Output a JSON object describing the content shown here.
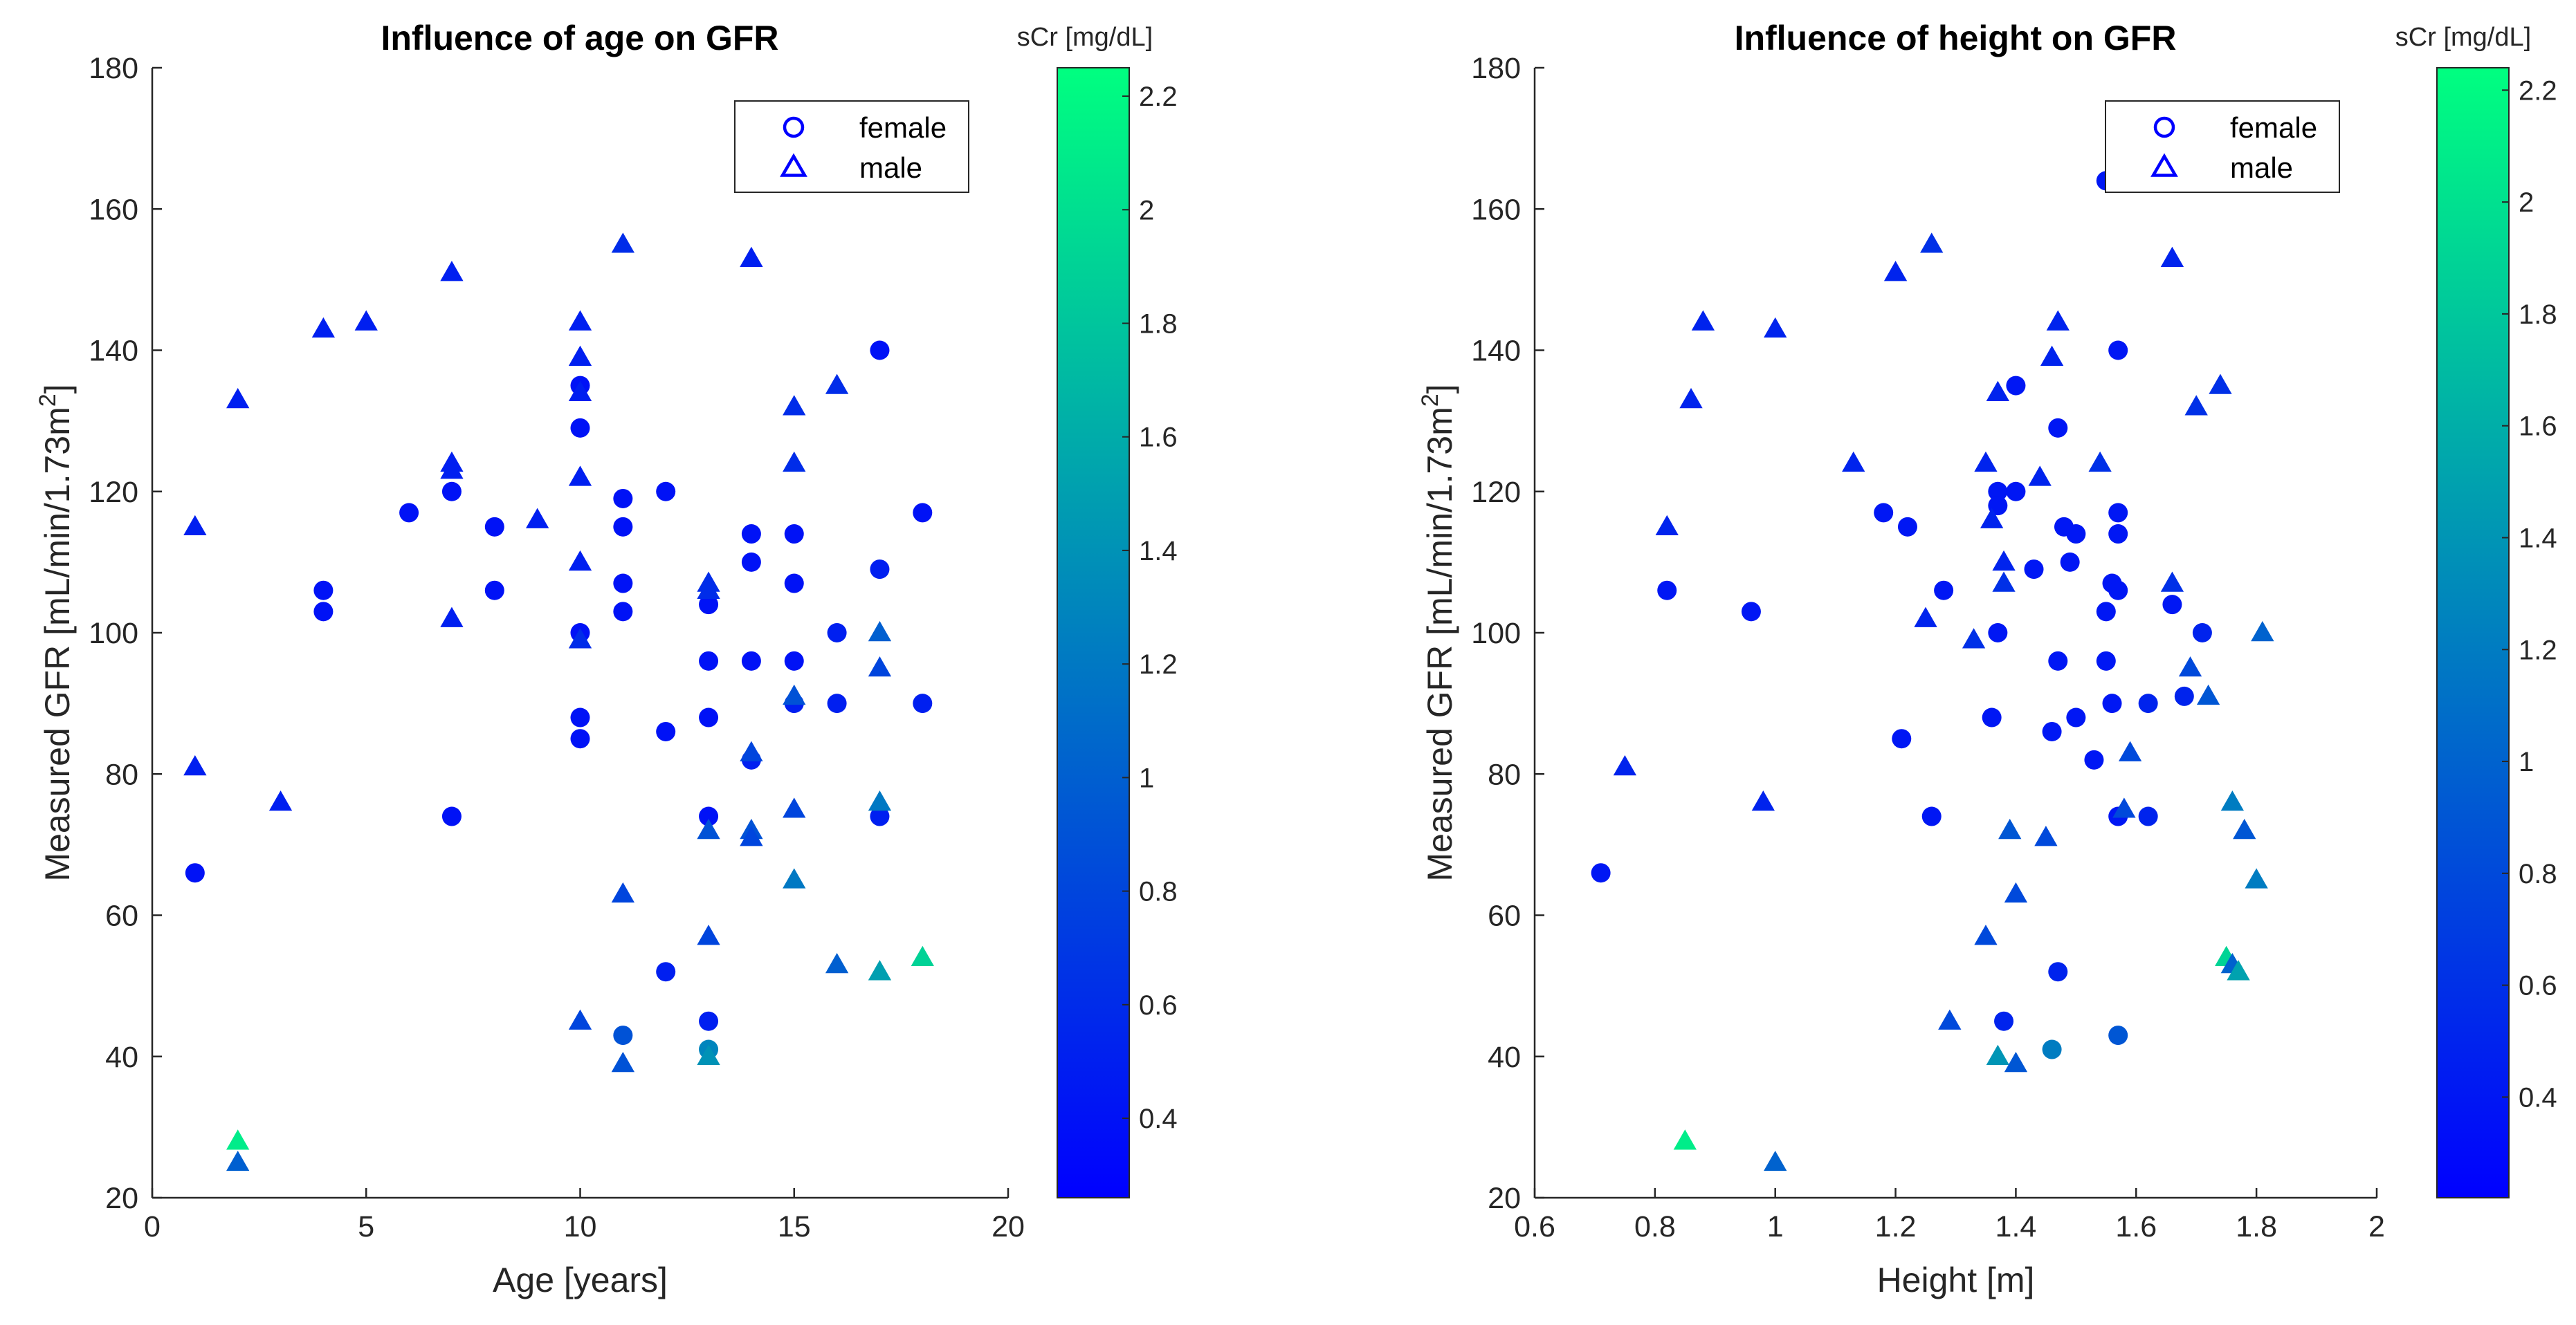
{
  "chart_data": [
    {
      "type": "scatter",
      "title": "Influence of age on GFR",
      "xlabel": "Age [years]",
      "ylabel": "Measured GFR [mL/min/1.73m",
      "ylabel_sup": "2",
      "ylabel_end": "]",
      "xlim": [
        0,
        20
      ],
      "ylim": [
        20,
        180
      ],
      "xticks": [
        0,
        5,
        10,
        15,
        20
      ],
      "yticks": [
        20,
        40,
        60,
        80,
        100,
        120,
        140,
        160,
        180
      ],
      "grid": false,
      "legend_position": "top-right",
      "colorbar": {
        "label": "sCr [mg/dL]",
        "range": [
          0.26,
          2.25
        ],
        "ticks": [
          0.4,
          0.6,
          0.8,
          1,
          1.2,
          1.4,
          1.6,
          1.8,
          2,
          2.2
        ],
        "colormap_low": "#0000ff",
        "colormap_high": "#00ff80"
      },
      "series": [
        {
          "name": "female",
          "marker": "circle",
          "points": [
            {
              "x": 1,
              "y": 66,
              "c": 0.4
            },
            {
              "x": 4,
              "y": 106,
              "c": 0.4
            },
            {
              "x": 4,
              "y": 103,
              "c": 0.4
            },
            {
              "x": 6,
              "y": 117,
              "c": 0.4
            },
            {
              "x": 7,
              "y": 120,
              "c": 0.4
            },
            {
              "x": 7,
              "y": 74,
              "c": 0.4
            },
            {
              "x": 8,
              "y": 115,
              "c": 0.4
            },
            {
              "x": 8,
              "y": 106,
              "c": 0.4
            },
            {
              "x": 10,
              "y": 135,
              "c": 0.4
            },
            {
              "x": 10,
              "y": 129,
              "c": 0.4
            },
            {
              "x": 10,
              "y": 100,
              "c": 0.4
            },
            {
              "x": 10,
              "y": 88,
              "c": 0.4
            },
            {
              "x": 10,
              "y": 85,
              "c": 0.4
            },
            {
              "x": 11,
              "y": 119,
              "c": 0.4
            },
            {
              "x": 11,
              "y": 115,
              "c": 0.4
            },
            {
              "x": 11,
              "y": 107,
              "c": 0.4
            },
            {
              "x": 11,
              "y": 103,
              "c": 0.4
            },
            {
              "x": 11,
              "y": 43,
              "c": 0.9
            },
            {
              "x": 12,
              "y": 120,
              "c": 0.4
            },
            {
              "x": 12,
              "y": 86,
              "c": 0.4
            },
            {
              "x": 12,
              "y": 52,
              "c": 0.5
            },
            {
              "x": 13,
              "y": 104,
              "c": 0.4
            },
            {
              "x": 13,
              "y": 96,
              "c": 0.4
            },
            {
              "x": 13,
              "y": 88,
              "c": 0.4
            },
            {
              "x": 13,
              "y": 74,
              "c": 0.4
            },
            {
              "x": 13,
              "y": 45,
              "c": 0.5
            },
            {
              "x": 13,
              "y": 41,
              "c": 1.3
            },
            {
              "x": 14,
              "y": 114,
              "c": 0.4
            },
            {
              "x": 14,
              "y": 110,
              "c": 0.4
            },
            {
              "x": 14,
              "y": 96,
              "c": 0.4
            },
            {
              "x": 14,
              "y": 82,
              "c": 0.5
            },
            {
              "x": 15,
              "y": 114,
              "c": 0.4
            },
            {
              "x": 15,
              "y": 107,
              "c": 0.4
            },
            {
              "x": 15,
              "y": 96,
              "c": 0.4
            },
            {
              "x": 15,
              "y": 90,
              "c": 0.5
            },
            {
              "x": 16,
              "y": 100,
              "c": 0.5
            },
            {
              "x": 16,
              "y": 90,
              "c": 0.5
            },
            {
              "x": 17,
              "y": 140,
              "c": 0.4
            },
            {
              "x": 17,
              "y": 109,
              "c": 0.5
            },
            {
              "x": 17,
              "y": 74,
              "c": 0.5
            },
            {
              "x": 18,
              "y": 117,
              "c": 0.4
            },
            {
              "x": 18,
              "y": 90,
              "c": 0.5
            }
          ]
        },
        {
          "name": "male",
          "marker": "triangle",
          "points": [
            {
              "x": 1,
              "y": 115,
              "c": 0.5
            },
            {
              "x": 1,
              "y": 81,
              "c": 0.5
            },
            {
              "x": 2,
              "y": 133,
              "c": 0.5
            },
            {
              "x": 2,
              "y": 28,
              "c": 2.1
            },
            {
              "x": 2,
              "y": 25,
              "c": 1.0
            },
            {
              "x": 3,
              "y": 76,
              "c": 0.5
            },
            {
              "x": 4,
              "y": 143,
              "c": 0.5
            },
            {
              "x": 5,
              "y": 144,
              "c": 0.5
            },
            {
              "x": 7,
              "y": 151,
              "c": 0.5
            },
            {
              "x": 7,
              "y": 124,
              "c": 0.5
            },
            {
              "x": 7,
              "y": 123,
              "c": 0.5
            },
            {
              "x": 7,
              "y": 102,
              "c": 0.5
            },
            {
              "x": 9,
              "y": 116,
              "c": 0.5
            },
            {
              "x": 10,
              "y": 144,
              "c": 0.5
            },
            {
              "x": 10,
              "y": 139,
              "c": 0.5
            },
            {
              "x": 10,
              "y": 134,
              "c": 0.5
            },
            {
              "x": 10,
              "y": 122,
              "c": 0.5
            },
            {
              "x": 10,
              "y": 110,
              "c": 0.5
            },
            {
              "x": 10,
              "y": 99,
              "c": 0.6
            },
            {
              "x": 10,
              "y": 45,
              "c": 0.8
            },
            {
              "x": 11,
              "y": 155,
              "c": 0.6
            },
            {
              "x": 11,
              "y": 63,
              "c": 0.8
            },
            {
              "x": 11,
              "y": 39,
              "c": 0.9
            },
            {
              "x": 13,
              "y": 107,
              "c": 0.6
            },
            {
              "x": 13,
              "y": 106,
              "c": 0.6
            },
            {
              "x": 13,
              "y": 72,
              "c": 0.9
            },
            {
              "x": 13,
              "y": 57,
              "c": 0.8
            },
            {
              "x": 13,
              "y": 40,
              "c": 1.4
            },
            {
              "x": 14,
              "y": 153,
              "c": 0.5
            },
            {
              "x": 14,
              "y": 83,
              "c": 0.8
            },
            {
              "x": 14,
              "y": 72,
              "c": 0.9
            },
            {
              "x": 14,
              "y": 71,
              "c": 0.8
            },
            {
              "x": 15,
              "y": 132,
              "c": 0.6
            },
            {
              "x": 15,
              "y": 124,
              "c": 0.6
            },
            {
              "x": 15,
              "y": 91,
              "c": 0.9
            },
            {
              "x": 15,
              "y": 75,
              "c": 0.8
            },
            {
              "x": 15,
              "y": 65,
              "c": 1.2
            },
            {
              "x": 16,
              "y": 135,
              "c": 0.6
            },
            {
              "x": 16,
              "y": 53,
              "c": 1.0
            },
            {
              "x": 17,
              "y": 100,
              "c": 1.0
            },
            {
              "x": 17,
              "y": 95,
              "c": 0.8
            },
            {
              "x": 17,
              "y": 76,
              "c": 1.2
            },
            {
              "x": 17,
              "y": 52,
              "c": 1.5
            },
            {
              "x": 18,
              "y": 54,
              "c": 1.9
            }
          ]
        }
      ]
    },
    {
      "type": "scatter",
      "title": "Influence of height on GFR",
      "xlabel": "Height [m]",
      "ylabel": "Measured GFR [mL/min/1.73m",
      "ylabel_sup": "2",
      "ylabel_end": "]",
      "xlim": [
        0.6,
        2
      ],
      "ylim": [
        20,
        180
      ],
      "xticks": [
        0.6,
        0.8,
        1,
        1.2,
        1.4,
        1.6,
        1.8,
        2
      ],
      "yticks": [
        20,
        40,
        60,
        80,
        100,
        120,
        140,
        160,
        180
      ],
      "grid": false,
      "legend_position": "top-right",
      "colorbar": {
        "label": "sCr [mg/dL]",
        "range": [
          0.22,
          2.24
        ],
        "ticks": [
          0.4,
          0.6,
          0.8,
          1,
          1.2,
          1.4,
          1.6,
          1.8,
          2,
          2.2
        ],
        "colormap_low": "#0000ff",
        "colormap_high": "#00ff80"
      },
      "series": [
        {
          "name": "female",
          "marker": "circle",
          "points": [
            {
              "x": 0.71,
              "y": 66,
              "c": 0.4
            },
            {
              "x": 0.82,
              "y": 106,
              "c": 0.4
            },
            {
              "x": 0.96,
              "y": 103,
              "c": 0.4
            },
            {
              "x": 1.18,
              "y": 117,
              "c": 0.4
            },
            {
              "x": 1.22,
              "y": 115,
              "c": 0.4
            },
            {
              "x": 1.21,
              "y": 85,
              "c": 0.4
            },
            {
              "x": 1.26,
              "y": 74,
              "c": 0.4
            },
            {
              "x": 1.28,
              "y": 106,
              "c": 0.4
            },
            {
              "x": 1.36,
              "y": 88,
              "c": 0.4
            },
            {
              "x": 1.37,
              "y": 120,
              "c": 0.4
            },
            {
              "x": 1.37,
              "y": 118,
              "c": 0.4
            },
            {
              "x": 1.37,
              "y": 100,
              "c": 0.4
            },
            {
              "x": 1.38,
              "y": 45,
              "c": 0.5
            },
            {
              "x": 1.4,
              "y": 135,
              "c": 0.4
            },
            {
              "x": 1.4,
              "y": 120,
              "c": 0.4
            },
            {
              "x": 1.43,
              "y": 109,
              "c": 0.4
            },
            {
              "x": 1.46,
              "y": 86,
              "c": 0.4
            },
            {
              "x": 1.46,
              "y": 41,
              "c": 1.2
            },
            {
              "x": 1.47,
              "y": 129,
              "c": 0.4
            },
            {
              "x": 1.47,
              "y": 96,
              "c": 0.4
            },
            {
              "x": 1.47,
              "y": 52,
              "c": 0.5
            },
            {
              "x": 1.48,
              "y": 115,
              "c": 0.4
            },
            {
              "x": 1.49,
              "y": 110,
              "c": 0.4
            },
            {
              "x": 1.5,
              "y": 114,
              "c": 0.4
            },
            {
              "x": 1.5,
              "y": 88,
              "c": 0.4
            },
            {
              "x": 1.53,
              "y": 82,
              "c": 0.4
            },
            {
              "x": 1.55,
              "y": 164,
              "c": 0.4
            },
            {
              "x": 1.55,
              "y": 103,
              "c": 0.4
            },
            {
              "x": 1.55,
              "y": 96,
              "c": 0.4
            },
            {
              "x": 1.56,
              "y": 107,
              "c": 0.4
            },
            {
              "x": 1.56,
              "y": 90,
              "c": 0.4
            },
            {
              "x": 1.57,
              "y": 140,
              "c": 0.4
            },
            {
              "x": 1.57,
              "y": 117,
              "c": 0.4
            },
            {
              "x": 1.57,
              "y": 114,
              "c": 0.4
            },
            {
              "x": 1.57,
              "y": 106,
              "c": 0.4
            },
            {
              "x": 1.57,
              "y": 74,
              "c": 0.4
            },
            {
              "x": 1.57,
              "y": 43,
              "c": 0.9
            },
            {
              "x": 1.62,
              "y": 90,
              "c": 0.5
            },
            {
              "x": 1.62,
              "y": 74,
              "c": 0.5
            },
            {
              "x": 1.66,
              "y": 104,
              "c": 0.4
            },
            {
              "x": 1.68,
              "y": 91,
              "c": 0.5
            },
            {
              "x": 1.71,
              "y": 100,
              "c": 0.5
            }
          ]
        },
        {
          "name": "male",
          "marker": "triangle",
          "points": [
            {
              "x": 0.75,
              "y": 81,
              "c": 0.5
            },
            {
              "x": 0.82,
              "y": 115,
              "c": 0.5
            },
            {
              "x": 0.85,
              "y": 28,
              "c": 2.1
            },
            {
              "x": 0.86,
              "y": 133,
              "c": 0.5
            },
            {
              "x": 0.88,
              "y": 144,
              "c": 0.5
            },
            {
              "x": 0.98,
              "y": 76,
              "c": 0.5
            },
            {
              "x": 1.0,
              "y": 143,
              "c": 0.5
            },
            {
              "x": 1.0,
              "y": 25,
              "c": 1.0
            },
            {
              "x": 1.13,
              "y": 124,
              "c": 0.5
            },
            {
              "x": 1.2,
              "y": 151,
              "c": 0.5
            },
            {
              "x": 1.25,
              "y": 102,
              "c": 0.5
            },
            {
              "x": 1.26,
              "y": 155,
              "c": 0.6
            },
            {
              "x": 1.29,
              "y": 45,
              "c": 0.8
            },
            {
              "x": 1.33,
              "y": 99,
              "c": 0.6
            },
            {
              "x": 1.35,
              "y": 124,
              "c": 0.5
            },
            {
              "x": 1.35,
              "y": 57,
              "c": 0.8
            },
            {
              "x": 1.36,
              "y": 116,
              "c": 0.5
            },
            {
              "x": 1.37,
              "y": 134,
              "c": 0.5
            },
            {
              "x": 1.37,
              "y": 40,
              "c": 1.4
            },
            {
              "x": 1.38,
              "y": 110,
              "c": 0.5
            },
            {
              "x": 1.38,
              "y": 107,
              "c": 0.6
            },
            {
              "x": 1.39,
              "y": 72,
              "c": 0.9
            },
            {
              "x": 1.4,
              "y": 63,
              "c": 0.8
            },
            {
              "x": 1.4,
              "y": 39,
              "c": 0.9
            },
            {
              "x": 1.44,
              "y": 122,
              "c": 0.5
            },
            {
              "x": 1.45,
              "y": 71,
              "c": 0.8
            },
            {
              "x": 1.46,
              "y": 139,
              "c": 0.5
            },
            {
              "x": 1.47,
              "y": 144,
              "c": 0.5
            },
            {
              "x": 1.54,
              "y": 124,
              "c": 0.6
            },
            {
              "x": 1.58,
              "y": 75,
              "c": 0.8
            },
            {
              "x": 1.59,
              "y": 83,
              "c": 0.8
            },
            {
              "x": 1.66,
              "y": 153,
              "c": 0.5
            },
            {
              "x": 1.66,
              "y": 107,
              "c": 0.6
            },
            {
              "x": 1.69,
              "y": 95,
              "c": 0.8
            },
            {
              "x": 1.7,
              "y": 132,
              "c": 0.6
            },
            {
              "x": 1.72,
              "y": 91,
              "c": 0.9
            },
            {
              "x": 1.74,
              "y": 135,
              "c": 0.6
            },
            {
              "x": 1.75,
              "y": 54,
              "c": 1.9
            },
            {
              "x": 1.76,
              "y": 76,
              "c": 1.2
            },
            {
              "x": 1.76,
              "y": 53,
              "c": 1.0
            },
            {
              "x": 1.77,
              "y": 52,
              "c": 1.5
            },
            {
              "x": 1.78,
              "y": 72,
              "c": 0.9
            },
            {
              "x": 1.8,
              "y": 65,
              "c": 1.2
            },
            {
              "x": 1.81,
              "y": 100,
              "c": 1.0
            }
          ]
        }
      ]
    }
  ]
}
